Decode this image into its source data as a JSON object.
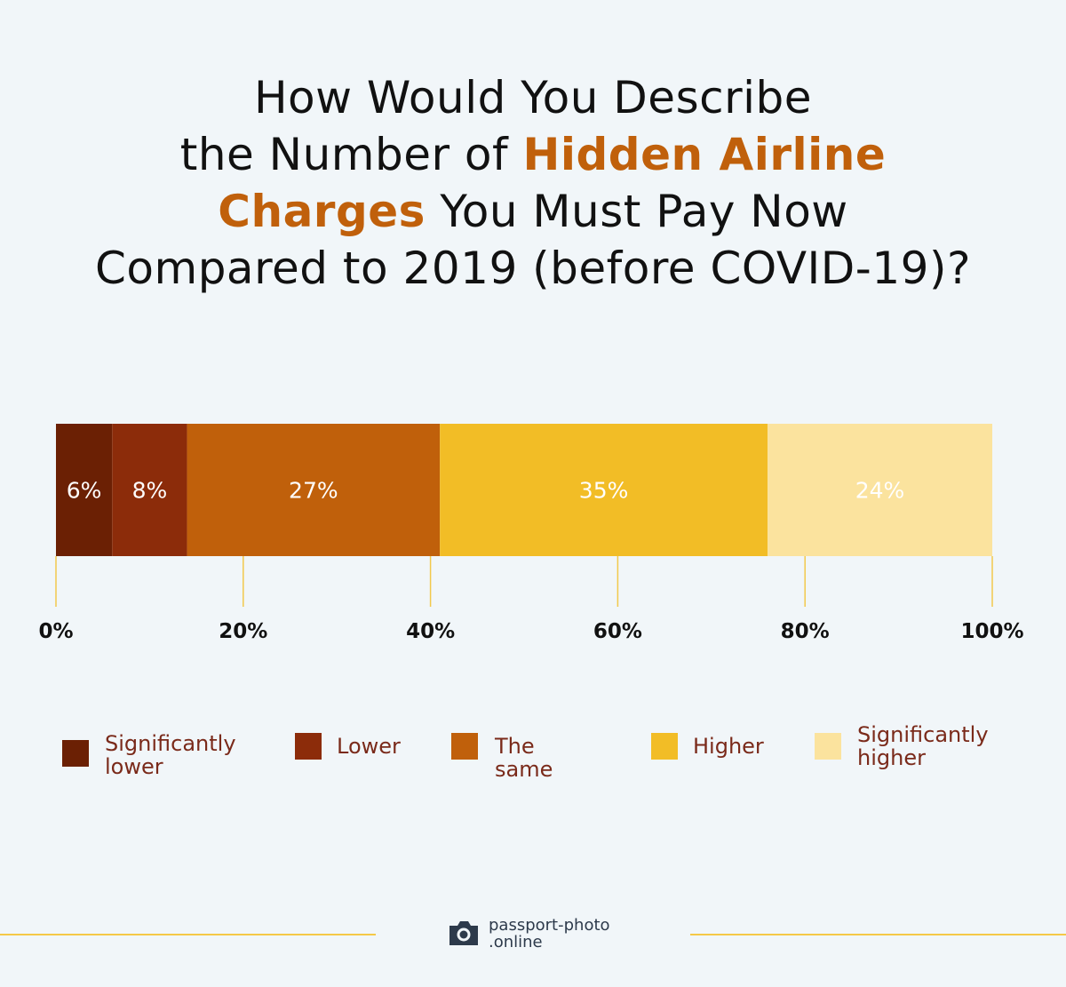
{
  "title": {
    "line1": "How Would You Describe",
    "line2_pre": "the Number of ",
    "line2_hl": "Hidden Airline",
    "line3_hl": "Charges",
    "line3_post": " You Must Pay Now",
    "line4": "Compared to 2019 (before COVID-19)?"
  },
  "chart_data": {
    "type": "bar",
    "orientation": "horizontal-stacked",
    "title": "How Would You Describe the Number of Hidden Airline Charges You Must Pay Now Compared to 2019 (before COVID-19)?",
    "xlim": [
      0,
      100
    ],
    "x_ticks": [
      "0%",
      "20%",
      "40%",
      "60%",
      "80%",
      "100%"
    ],
    "series": [
      {
        "name": "Significantly lower",
        "value": 6,
        "label": "6%",
        "color": "#6b2004",
        "label_color": "#ffffff"
      },
      {
        "name": "Lower",
        "value": 8,
        "label": "8%",
        "color": "#8c2c0a",
        "label_color": "#ffffff"
      },
      {
        "name": "The same",
        "value": 27,
        "label": "27%",
        "color": "#c0600b",
        "label_color": "#ffffff"
      },
      {
        "name": "Higher",
        "value": 35,
        "label": "35%",
        "color": "#f2bd26",
        "label_color": "#ffffff"
      },
      {
        "name": "Significantly higher",
        "value": 24,
        "label": "24%",
        "color": "#fbe39e",
        "label_color": "#ffffff"
      }
    ],
    "legend_position": "bottom"
  },
  "legend": [
    {
      "label": "Significantly\nlower",
      "color": "#6b2004"
    },
    {
      "label": "Lower",
      "color": "#8c2c0a"
    },
    {
      "label": "The same",
      "color": "#c0600b"
    },
    {
      "label": "Higher",
      "color": "#f2bd26"
    },
    {
      "label": "Significantly\nhigher",
      "color": "#fbe39e"
    }
  ],
  "footer": {
    "brand": "passport-photo\n.online",
    "logo_icon": "camera-icon",
    "line_color": "#f5c947"
  }
}
